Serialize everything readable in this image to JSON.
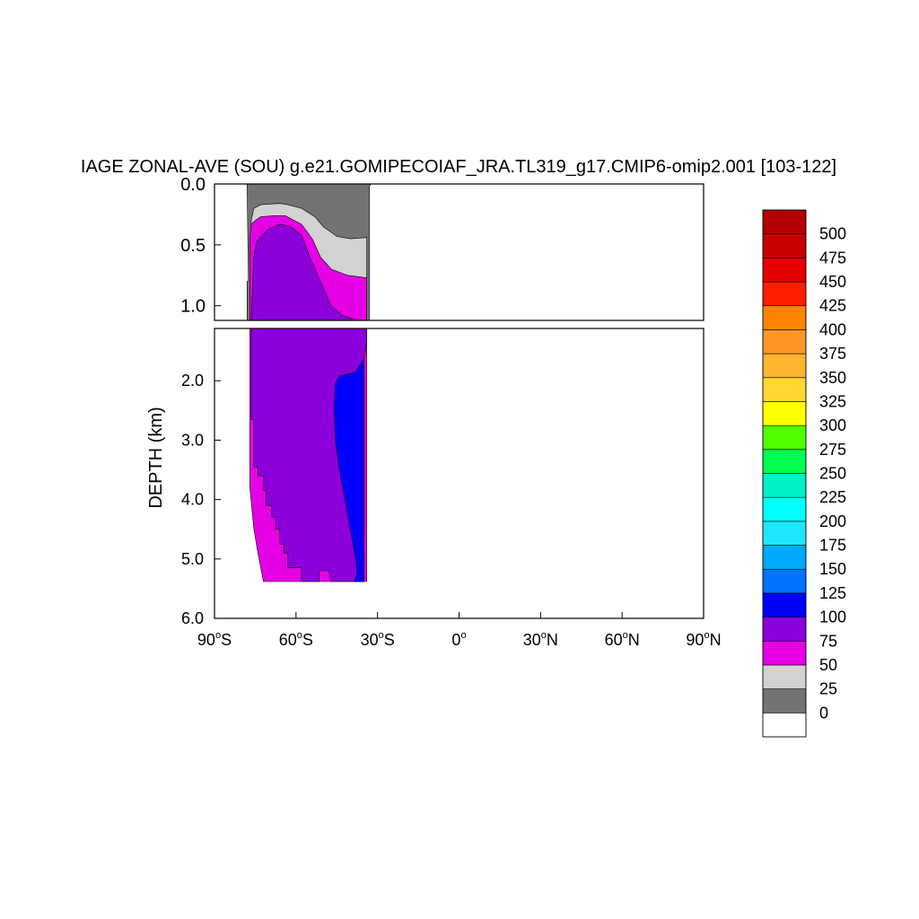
{
  "chart_data": {
    "type": "contour",
    "title": "IAGE ZONAL-AVE (SOU) g.e21.GOMIPECOIAF_JRA.TL319_g17.CMIP6-omip2.001 [103-122]",
    "ylabel": "DEPTH (km)",
    "xlabel": "",
    "x_range": [
      -90,
      90
    ],
    "x_ticks": [
      {
        "value": -90,
        "label": "90",
        "suffix": "S"
      },
      {
        "value": -60,
        "label": "60",
        "suffix": "S"
      },
      {
        "value": -30,
        "label": "30",
        "suffix": "S"
      },
      {
        "value": 0,
        "label": "0",
        "suffix": ""
      },
      {
        "value": 30,
        "label": "30",
        "suffix": "N"
      },
      {
        "value": 60,
        "label": "60",
        "suffix": "N"
      },
      {
        "value": 90,
        "label": "90",
        "suffix": "N"
      }
    ],
    "upper_panel": {
      "depth_range": [
        0,
        1.12
      ],
      "ticks": [
        "0.0",
        "0.5",
        "1.0"
      ],
      "tick_values": [
        0,
        0.5,
        1.0
      ]
    },
    "lower_panel": {
      "depth_range": [
        1.12,
        6.0
      ],
      "ticks": [
        "2.0",
        "3.0",
        "4.0",
        "5.0",
        "6.0"
      ],
      "tick_values": [
        2,
        3,
        4,
        5,
        6
      ]
    },
    "levels": [
      "0",
      "25",
      "50",
      "75",
      "100",
      "125",
      "150",
      "175",
      "200",
      "225",
      "250",
      "275",
      "300",
      "325",
      "350",
      "375",
      "400",
      "425",
      "450",
      "475",
      "500"
    ],
    "colorbar_colors": [
      "#ffffff",
      "#737373",
      "#d2d2d2",
      "#e600e6",
      "#8c00dc",
      "#0000ff",
      "#0073ff",
      "#00aaff",
      "#1ee6ff",
      "#00ffff",
      "#00f0c8",
      "#00ff50",
      "#50ff00",
      "#ffff00",
      "#ffd732",
      "#ffb432",
      "#ff9628",
      "#ff8200",
      "#ff1e00",
      "#e60000",
      "#c80000",
      "#b40000"
    ],
    "regions": [
      {
        "band": "0-25",
        "color": "#737373",
        "upper_poly": [
          [
            -78,
            0
          ],
          [
            -32.5,
            0
          ],
          [
            -33,
            0.02
          ],
          [
            -33,
            1.12
          ],
          [
            -78,
            1.12
          ],
          [
            -78,
            0.8
          ],
          [
            -77.5,
            0.8
          ]
        ]
      },
      {
        "band": "25-50",
        "color": "#d2d2d2",
        "upper_poly": [
          [
            -76.5,
            0.3
          ],
          [
            -75.5,
            0.2
          ],
          [
            -73,
            0.17
          ],
          [
            -66,
            0.16
          ],
          [
            -63,
            0.17
          ],
          [
            -58,
            0.2
          ],
          [
            -53,
            0.27
          ],
          [
            -50,
            0.35
          ],
          [
            -45,
            0.43
          ],
          [
            -40,
            0.45
          ],
          [
            -34,
            0.44
          ],
          [
            -34,
            1.12
          ],
          [
            -76.5,
            1.12
          ]
        ]
      },
      {
        "band": "50-75",
        "color": "#e600e6",
        "upper_poly": [
          [
            -77,
            0.45
          ],
          [
            -76.5,
            0.33
          ],
          [
            -75,
            0.3
          ],
          [
            -73,
            0.27
          ],
          [
            -68,
            0.26
          ],
          [
            -64,
            0.26
          ],
          [
            -58,
            0.33
          ],
          [
            -54,
            0.45
          ],
          [
            -51,
            0.6
          ],
          [
            -47,
            0.7
          ],
          [
            -41,
            0.75
          ],
          [
            -34,
            0.77
          ],
          [
            -34,
            1.12
          ],
          [
            -77,
            1.12
          ]
        ],
        "lower_poly": [
          [
            -77,
            1.12
          ],
          [
            -34,
            1.12
          ],
          [
            -34,
            5.38
          ],
          [
            -60,
            5.38
          ],
          [
            -72,
            5.38
          ],
          [
            -74,
            4.9
          ],
          [
            -75.5,
            4.5
          ],
          [
            -77,
            3.8
          ],
          [
            -77,
            1.12
          ]
        ]
      },
      {
        "band": "75-100",
        "color": "#8c00dc",
        "upper_poly": [
          [
            -76.5,
            1.12
          ],
          [
            -76,
            0.85
          ],
          [
            -75.5,
            0.6
          ],
          [
            -74.5,
            0.48
          ],
          [
            -72.5,
            0.42
          ],
          [
            -70,
            0.37
          ],
          [
            -66,
            0.33
          ],
          [
            -62,
            0.35
          ],
          [
            -58,
            0.42
          ],
          [
            -55,
            0.6
          ],
          [
            -51,
            0.8
          ],
          [
            -47,
            1.0
          ],
          [
            -43,
            1.08
          ],
          [
            -40,
            1.1
          ],
          [
            -38,
            1.12
          ]
        ],
        "lower_poly": [
          [
            -76.5,
            1.12
          ],
          [
            -34,
            1.12
          ],
          [
            -34,
            1.38
          ],
          [
            -35,
            1.62
          ],
          [
            -35,
            5.38
          ],
          [
            -47,
            5.38
          ],
          [
            -48,
            5.2
          ],
          [
            -51.5,
            5.2
          ],
          [
            -51.5,
            5.38
          ],
          [
            -58,
            5.38
          ],
          [
            -58,
            5.15
          ],
          [
            -63,
            5.15
          ],
          [
            -63,
            4.9
          ],
          [
            -64.5,
            4.9
          ],
          [
            -64.5,
            4.75
          ],
          [
            -66,
            4.75
          ],
          [
            -66,
            4.5
          ],
          [
            -67.5,
            4.5
          ],
          [
            -67.5,
            4.3
          ],
          [
            -69,
            4.3
          ],
          [
            -69,
            4.1
          ],
          [
            -71,
            4.1
          ],
          [
            -71,
            3.85
          ],
          [
            -72,
            3.85
          ],
          [
            -72,
            3.6
          ],
          [
            -74,
            3.6
          ],
          [
            -74,
            3.45
          ],
          [
            -75.5,
            3.45
          ],
          [
            -75.5,
            2.65
          ],
          [
            -76.5,
            2.65
          ]
        ]
      },
      {
        "band": "100-125",
        "color": "#0000ff",
        "lower_poly": [
          [
            -35,
            1.62
          ],
          [
            -38,
            1.85
          ],
          [
            -42,
            1.9
          ],
          [
            -44,
            1.92
          ],
          [
            -45.5,
            2.05
          ],
          [
            -46,
            2.5
          ],
          [
            -45.5,
            3.0
          ],
          [
            -44,
            3.5
          ],
          [
            -42,
            4.0
          ],
          [
            -40,
            4.5
          ],
          [
            -38,
            5.0
          ],
          [
            -37.5,
            5.25
          ],
          [
            -38.5,
            5.38
          ],
          [
            -35,
            5.38
          ]
        ]
      }
    ]
  }
}
